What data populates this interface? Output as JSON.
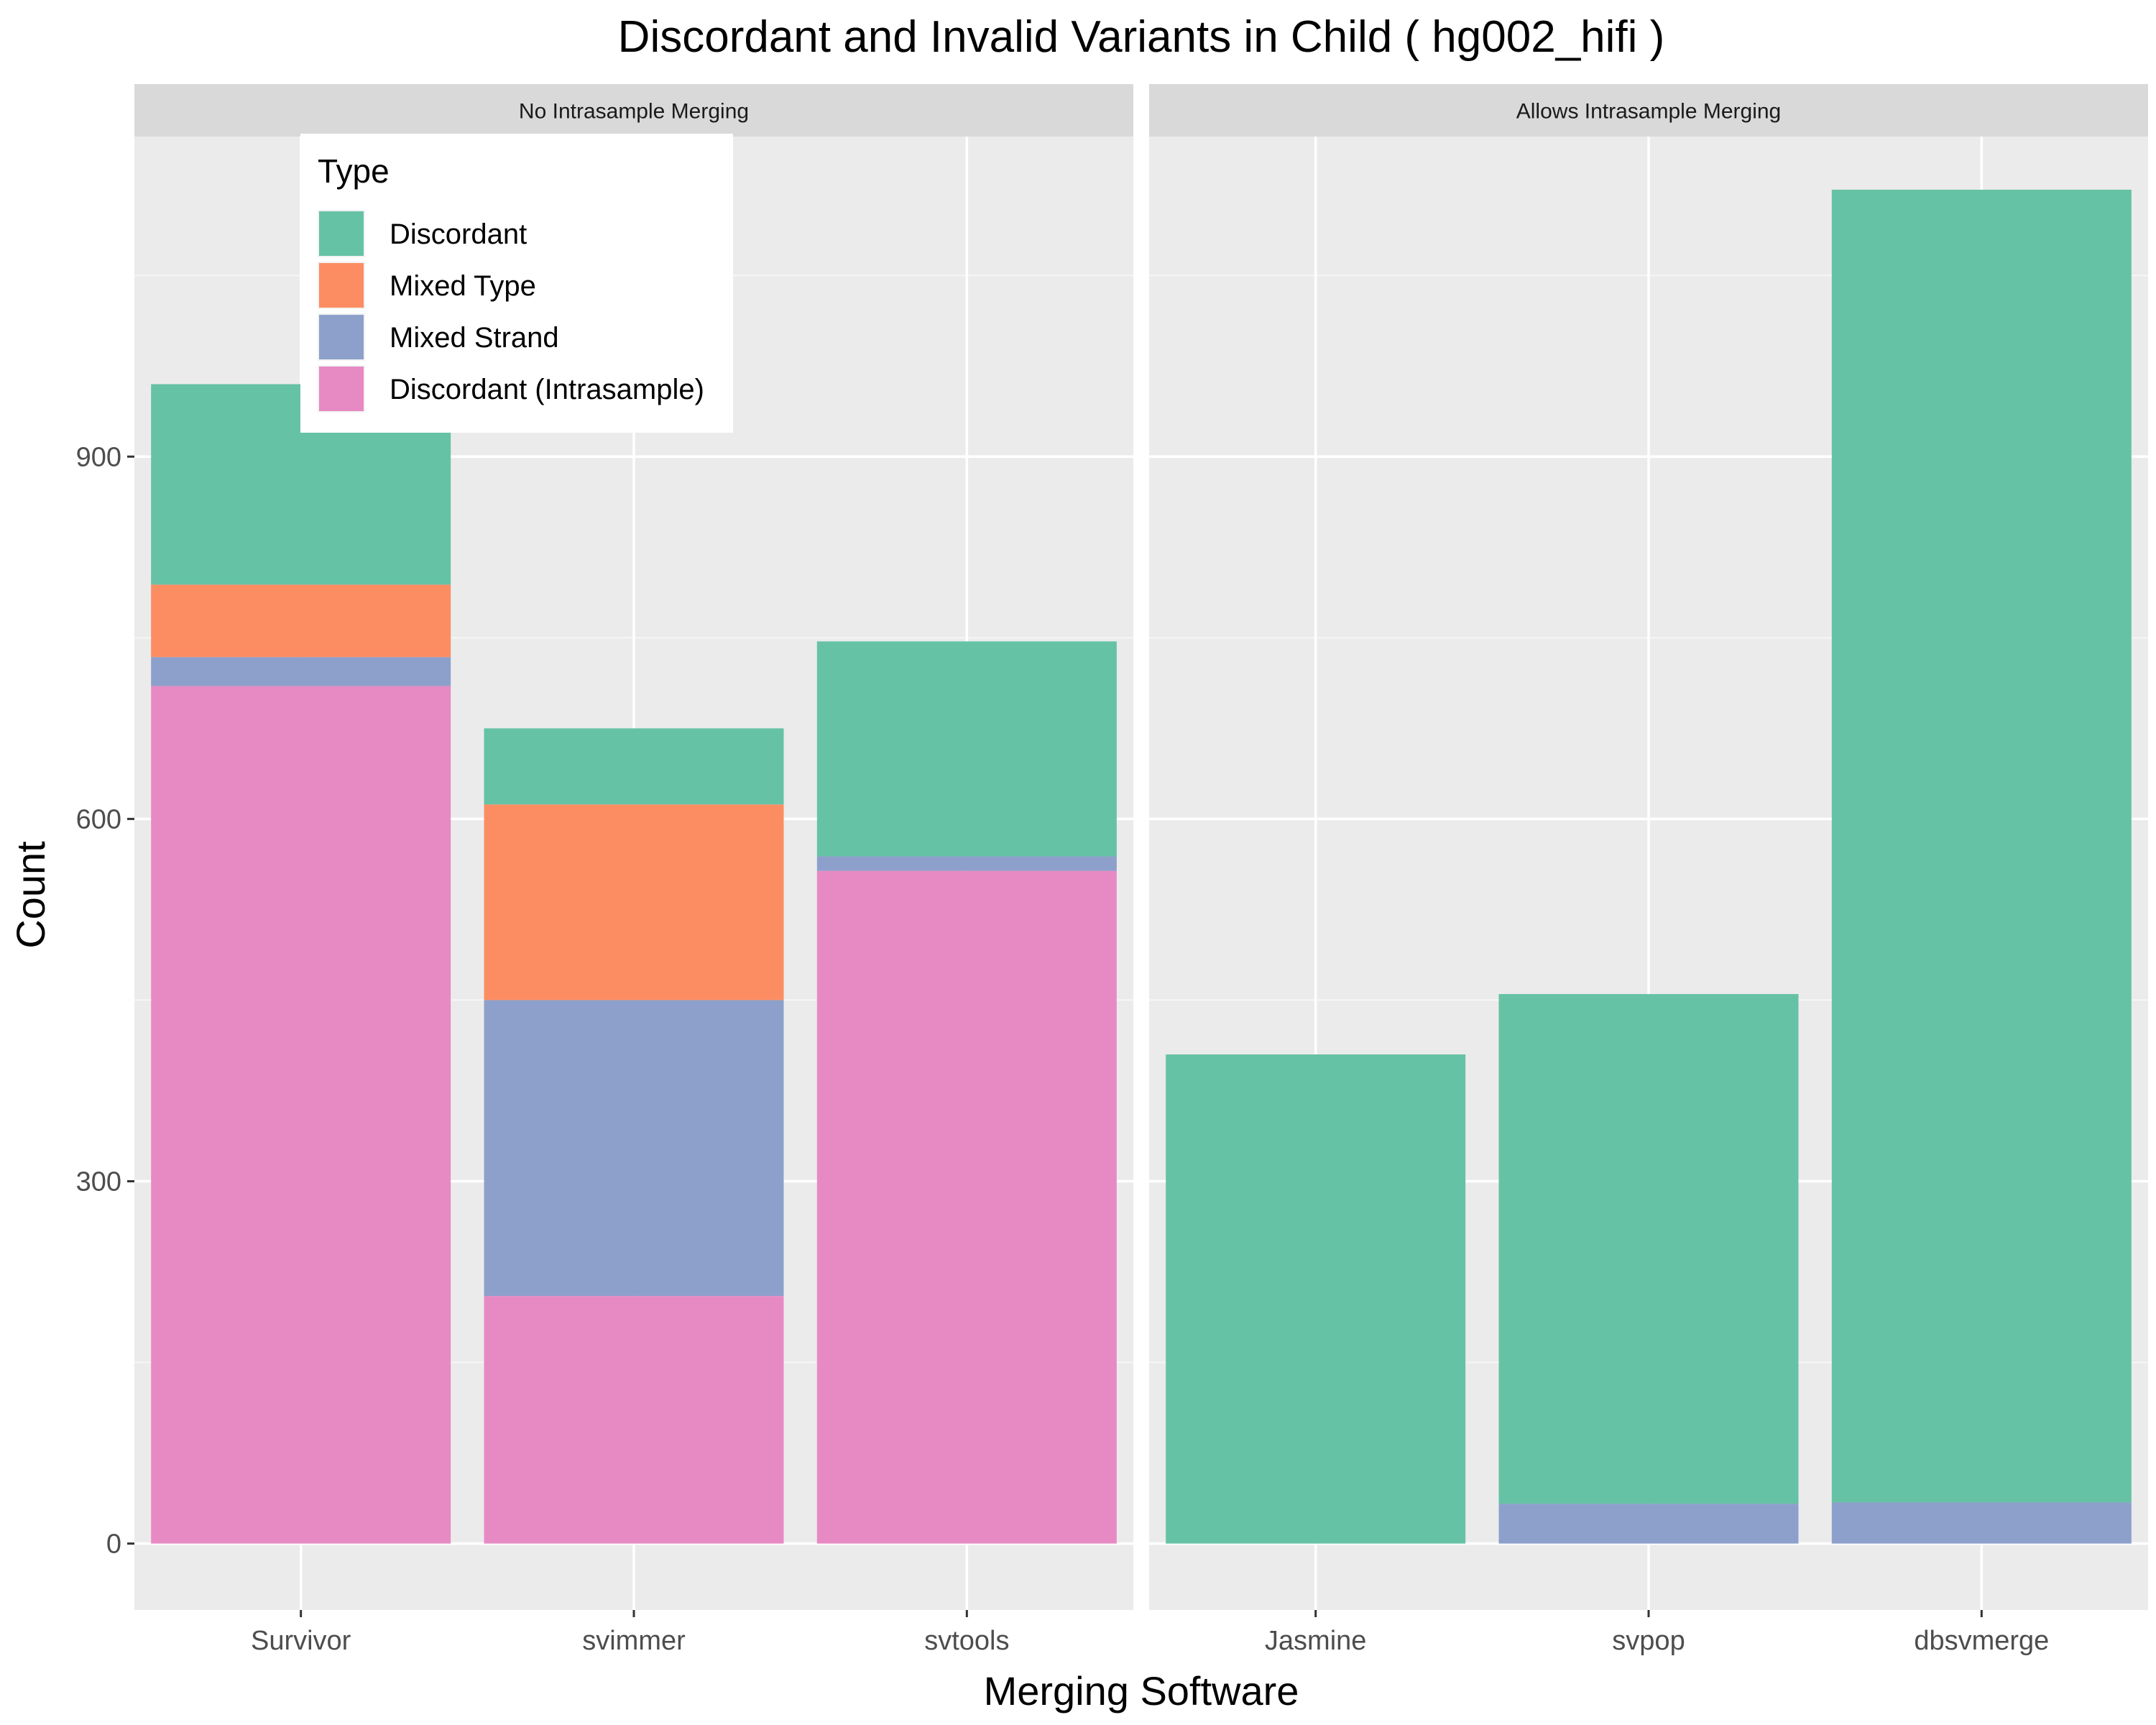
{
  "chart_data": {
    "type": "bar",
    "stacked": true,
    "title": "Discordant and Invalid Variants in Child ( hg002_hifi )",
    "xlabel": "Merging Software",
    "ylabel": "Count",
    "ylim": [
      -55,
      1165
    ],
    "yticks": [
      0,
      300,
      600,
      900
    ],
    "grid": true,
    "legend": {
      "title": "Type",
      "placement": "top-left",
      "entries": [
        "Discordant",
        "Mixed Type",
        "Mixed Strand",
        "Discordant (Intrasample)"
      ]
    },
    "colors": {
      "Discordant": "#66c2a5",
      "Mixed Type": "#fc8d62",
      "Mixed Strand": "#8da0cb",
      "Discordant (Intrasample)": "#e78ac3"
    },
    "facets": [
      {
        "label": "No Intrasample Merging",
        "categories": [
          "Survivor",
          "svimmer",
          "svtools"
        ],
        "series": [
          {
            "name": "Discordant (Intrasample)",
            "values": [
              710,
              205,
              557
            ]
          },
          {
            "name": "Mixed Strand",
            "values": [
              24,
              245,
              12
            ]
          },
          {
            "name": "Mixed Type",
            "values": [
              60,
              162,
              0
            ]
          },
          {
            "name": "Discordant",
            "values": [
              166,
              63,
              178
            ]
          }
        ]
      },
      {
        "label": "Allows Intrasample Merging",
        "categories": [
          "Jasmine",
          "svpop",
          "dbsvmerge"
        ],
        "series": [
          {
            "name": "Discordant (Intrasample)",
            "values": [
              0,
              0,
              0
            ]
          },
          {
            "name": "Mixed Strand",
            "values": [
              0,
              33,
              34
            ]
          },
          {
            "name": "Mixed Type",
            "values": [
              0,
              0,
              0
            ]
          },
          {
            "name": "Discordant",
            "values": [
              405,
              422,
              1087
            ]
          }
        ]
      }
    ]
  }
}
